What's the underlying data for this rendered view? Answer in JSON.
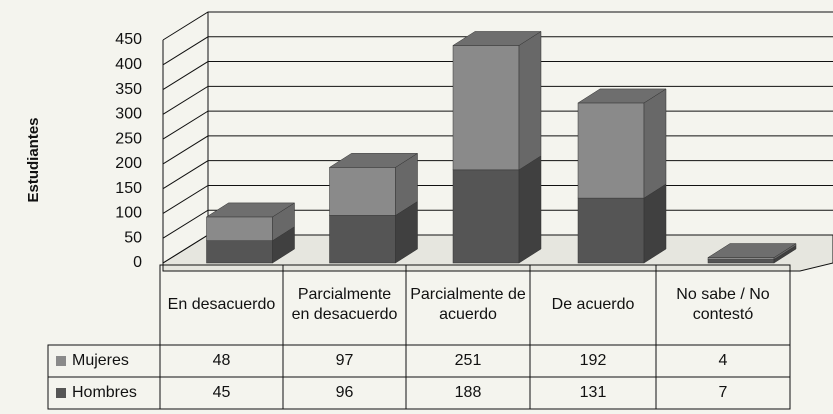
{
  "chart_data": {
    "type": "bar3d_stacked",
    "y_label": "Estudiantes",
    "categories": [
      "En desacuerdo",
      "Parcialmente en desacuerdo",
      "Parcialmente de acuerdo",
      "De acuerdo",
      "No sabe / No contestó"
    ],
    "series": [
      {
        "name": "Hombres",
        "color": "#555555",
        "values": [
          45,
          96,
          188,
          131,
          7
        ]
      },
      {
        "name": "Mujeres",
        "color": "#8a8a8a",
        "values": [
          48,
          97,
          251,
          192,
          4
        ]
      }
    ],
    "table_order": [
      1,
      0
    ],
    "ylim": [
      0,
      450
    ],
    "yticks": [
      0,
      50,
      100,
      150,
      200,
      250,
      300,
      350,
      400,
      450
    ],
    "grid": true
  }
}
